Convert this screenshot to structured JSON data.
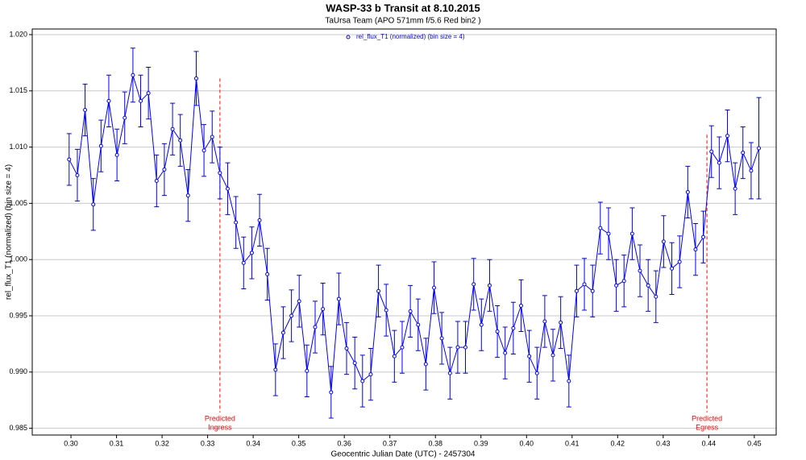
{
  "chart_data": {
    "type": "line",
    "title": "WASP-33 b Transit at 8.10.2015",
    "subtitle": "TaUrsa Team (APO 571mm f/5.6 Red bin2 )",
    "x_label": "Geocentric Julian Date (UTC) - 2457304",
    "y_label": "rel_flux_T1 (normalized) (bin size = 4)",
    "xlim": [
      0.2915,
      0.4548
    ],
    "ylim": [
      0.9844,
      1.0205
    ],
    "xticks": [
      {
        "value": 0.3,
        "label": "0.30"
      },
      0.31,
      0.32,
      0.33,
      0.34,
      0.35,
      0.36,
      0.37,
      0.38,
      0.39,
      {
        "value": 0.4,
        "label": "0.40"
      },
      0.41,
      0.42,
      0.43,
      0.44,
      0.45
    ],
    "yticks": [
      {
        "value": 0.985,
        "label": "0.985"
      },
      {
        "value": 0.99,
        "label": "0.990"
      },
      {
        "value": 0.995,
        "label": "0.995"
      },
      {
        "value": 1.0,
        "label": "1.000"
      },
      {
        "value": 1.005,
        "label": "1.005"
      },
      {
        "value": 1.01,
        "label": "1.010"
      },
      {
        "value": 1.015,
        "label": "1.015"
      },
      {
        "value": 1.02,
        "label": "1.020"
      }
    ],
    "grid": true,
    "legend": "top",
    "x": [
      0.2996,
      0.3014,
      0.3031,
      0.3049,
      0.3066,
      0.3083,
      0.3101,
      0.3118,
      0.3136,
      0.3153,
      0.317,
      0.3188,
      0.3205,
      0.3223,
      0.324,
      0.3257,
      0.3275,
      0.3292,
      0.331,
      0.3327,
      0.3344,
      0.3362,
      0.3379,
      0.3397,
      0.3414,
      0.3431,
      0.3449,
      0.3466,
      0.3484,
      0.3501,
      0.3518,
      0.3536,
      0.3553,
      0.3571,
      0.3588,
      0.3605,
      0.3623,
      0.364,
      0.3658,
      0.3675,
      0.3692,
      0.371,
      0.3727,
      0.3745,
      0.3762,
      0.3779,
      0.3797,
      0.3814,
      0.3832,
      0.3849,
      0.3866,
      0.3884,
      0.3901,
      0.3919,
      0.3936,
      0.3953,
      0.3971,
      0.3988,
      0.4006,
      0.4023,
      0.404,
      0.4058,
      0.4075,
      0.4093,
      0.411,
      0.4127,
      0.4145,
      0.4162,
      0.418,
      0.4197,
      0.4214,
      0.4232,
      0.4249,
      0.4267,
      0.4284,
      0.4301,
      0.4319,
      0.4336,
      0.4354,
      0.4371,
      0.4388,
      0.4406,
      0.4423,
      0.4441,
      0.4458,
      0.4475,
      0.4493,
      0.451
    ],
    "series": [
      {
        "name": "rel_flux_T1 (normalized) (bin size = 4)",
        "color": "#0000ff",
        "values": [
          1.0089,
          1.0075,
          1.0133,
          1.0049,
          1.0101,
          1.0141,
          1.0093,
          1.0126,
          1.0164,
          1.0141,
          1.0148,
          1.007,
          1.008,
          1.0116,
          1.0106,
          1.0057,
          1.0161,
          1.0097,
          1.0109,
          1.0077,
          1.0063,
          1.0033,
          0.9997,
          1.0006,
          1.0035,
          0.9987,
          0.9902,
          0.9935,
          0.995,
          0.9963,
          0.9901,
          0.994,
          0.9956,
          0.9882,
          0.9965,
          0.9921,
          0.9908,
          0.9892,
          0.9898,
          0.9972,
          0.9955,
          0.9914,
          0.9922,
          0.9954,
          0.9942,
          0.9907,
          0.9975,
          0.993,
          0.9899,
          0.9922,
          0.9922,
          0.9978,
          0.9942,
          0.9977,
          0.9936,
          0.9917,
          0.9939,
          0.9959,
          0.9914,
          0.9899,
          0.9945,
          0.9915,
          0.9944,
          0.9892,
          0.9972,
          0.9978,
          0.9972,
          1.0028,
          1.0023,
          0.9977,
          0.9981,
          1.0023,
          0.999,
          0.9977,
          0.9967,
          1.0016,
          0.9992,
          0.9998,
          1.006,
          1.0009,
          1.002,
          1.0096,
          1.0086,
          1.011,
          1.0063,
          1.0095,
          1.0079,
          1.0099
        ],
        "errors": [
          0.0023,
          0.0023,
          0.0023,
          0.0023,
          0.0023,
          0.0023,
          0.0023,
          0.0023,
          0.0024,
          0.0023,
          0.0023,
          0.0023,
          0.0023,
          0.0023,
          0.0023,
          0.0023,
          0.0024,
          0.0023,
          0.0023,
          0.0023,
          0.0023,
          0.0023,
          0.0023,
          0.0023,
          0.0023,
          0.0023,
          0.0023,
          0.0023,
          0.0023,
          0.0023,
          0.0023,
          0.0023,
          0.0023,
          0.0023,
          0.0023,
          0.0023,
          0.0023,
          0.0023,
          0.0023,
          0.0023,
          0.0023,
          0.0023,
          0.0023,
          0.0023,
          0.0023,
          0.0023,
          0.0023,
          0.0023,
          0.0023,
          0.0023,
          0.0023,
          0.0023,
          0.0023,
          0.0023,
          0.0023,
          0.0023,
          0.0023,
          0.0023,
          0.0023,
          0.0023,
          0.0023,
          0.0023,
          0.0023,
          0.0023,
          0.0023,
          0.0023,
          0.0023,
          0.0023,
          0.0023,
          0.0023,
          0.0023,
          0.0023,
          0.0023,
          0.0023,
          0.0023,
          0.0023,
          0.0023,
          0.0023,
          0.0023,
          0.0023,
          0.0023,
          0.0023,
          0.0023,
          0.0023,
          0.0023,
          0.0023,
          0.0025,
          0.0045
        ]
      }
    ],
    "annotations": [
      {
        "x": 0.3327,
        "y_top": 1.0161,
        "text": "Predicted",
        "text2": "Ingress",
        "color": "#ff0000"
      },
      {
        "x": 0.4396,
        "y_top": 1.0111,
        "text": "Predicted",
        "text2": "Egress",
        "color": "#ff0000"
      }
    ]
  }
}
